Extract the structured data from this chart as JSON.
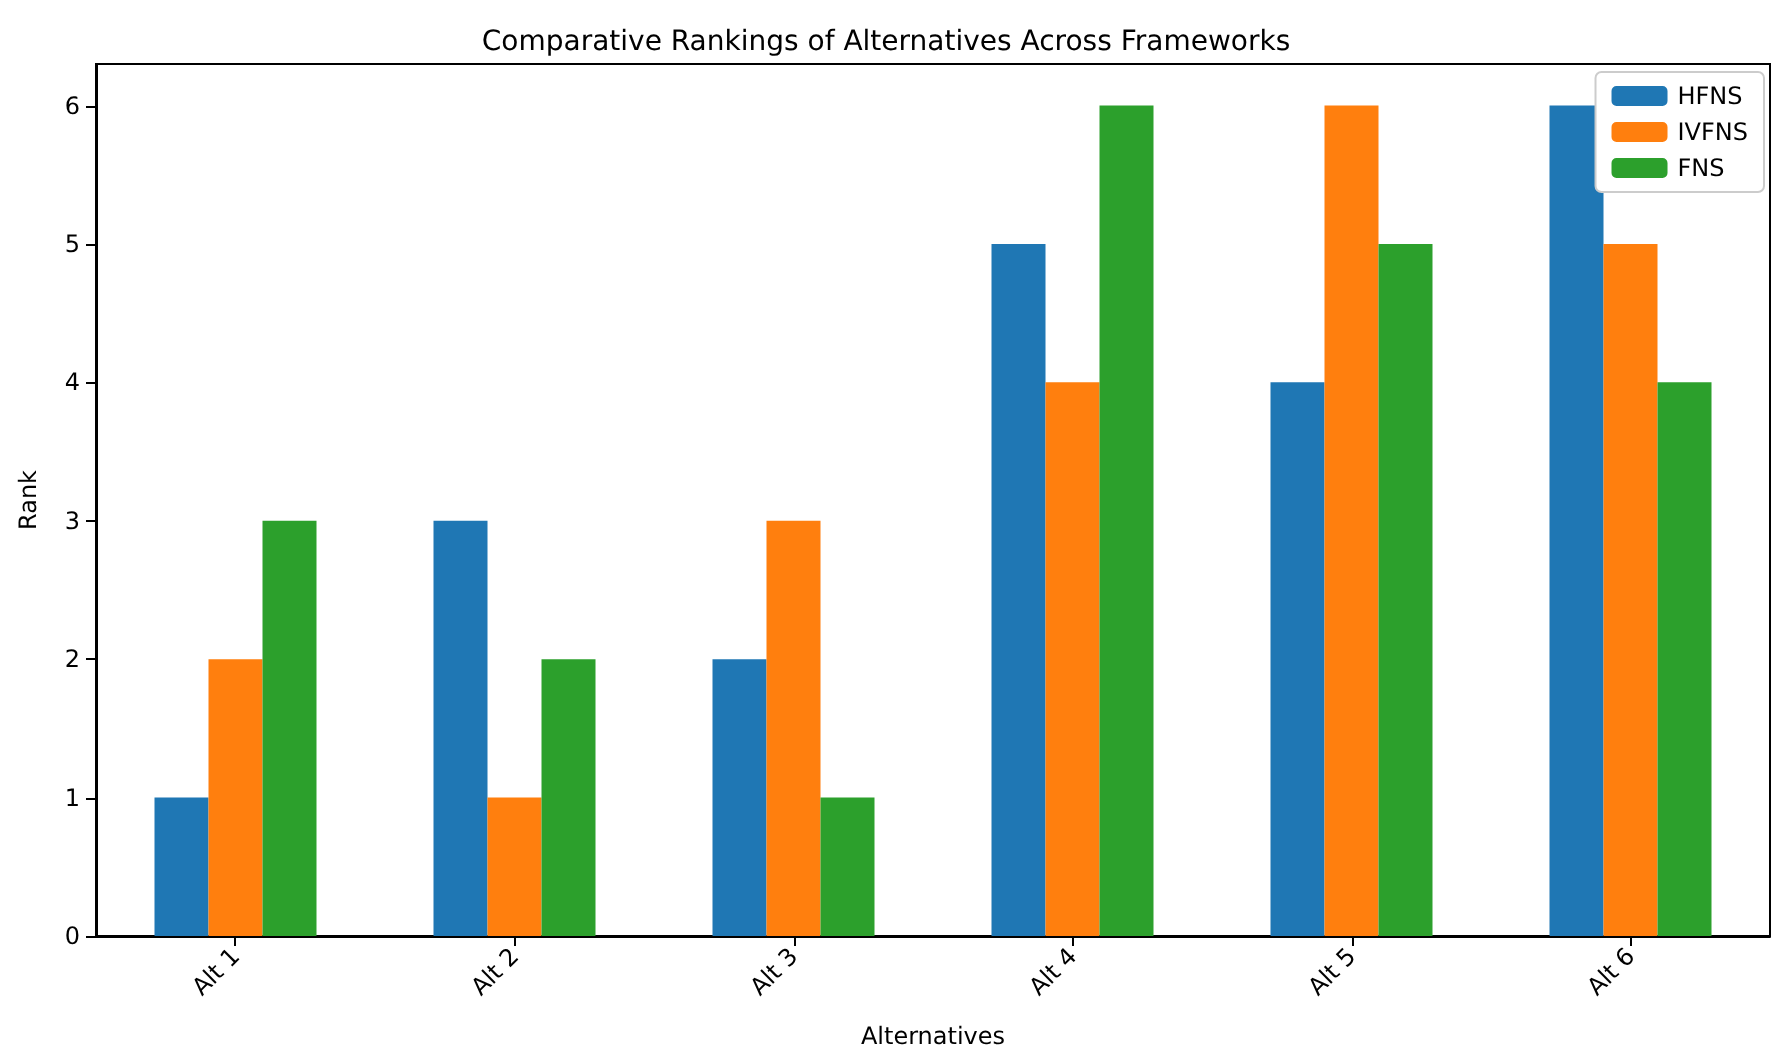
{
  "chart_data": {
    "type": "bar",
    "title": "Comparative Rankings of Alternatives Across Frameworks",
    "xlabel": "Alternatives",
    "ylabel": "Rank",
    "categories": [
      "Alt 1",
      "Alt 2",
      "Alt 3",
      "Alt 4",
      "Alt 5",
      "Alt 6"
    ],
    "series": [
      {
        "name": "HFNS",
        "color": "#1f77b4",
        "values": [
          1,
          3,
          2,
          5,
          4,
          6
        ]
      },
      {
        "name": "IVFNS",
        "color": "#ff7f0e",
        "values": [
          2,
          1,
          3,
          4,
          6,
          5
        ]
      },
      {
        "name": "FNS",
        "color": "#2ca02c",
        "values": [
          3,
          2,
          1,
          6,
          5,
          4
        ]
      }
    ],
    "ylim": [
      0,
      6.3
    ],
    "yticks": [
      0,
      1,
      2,
      3,
      4,
      5,
      6
    ],
    "grid": false,
    "legend": "top right"
  }
}
